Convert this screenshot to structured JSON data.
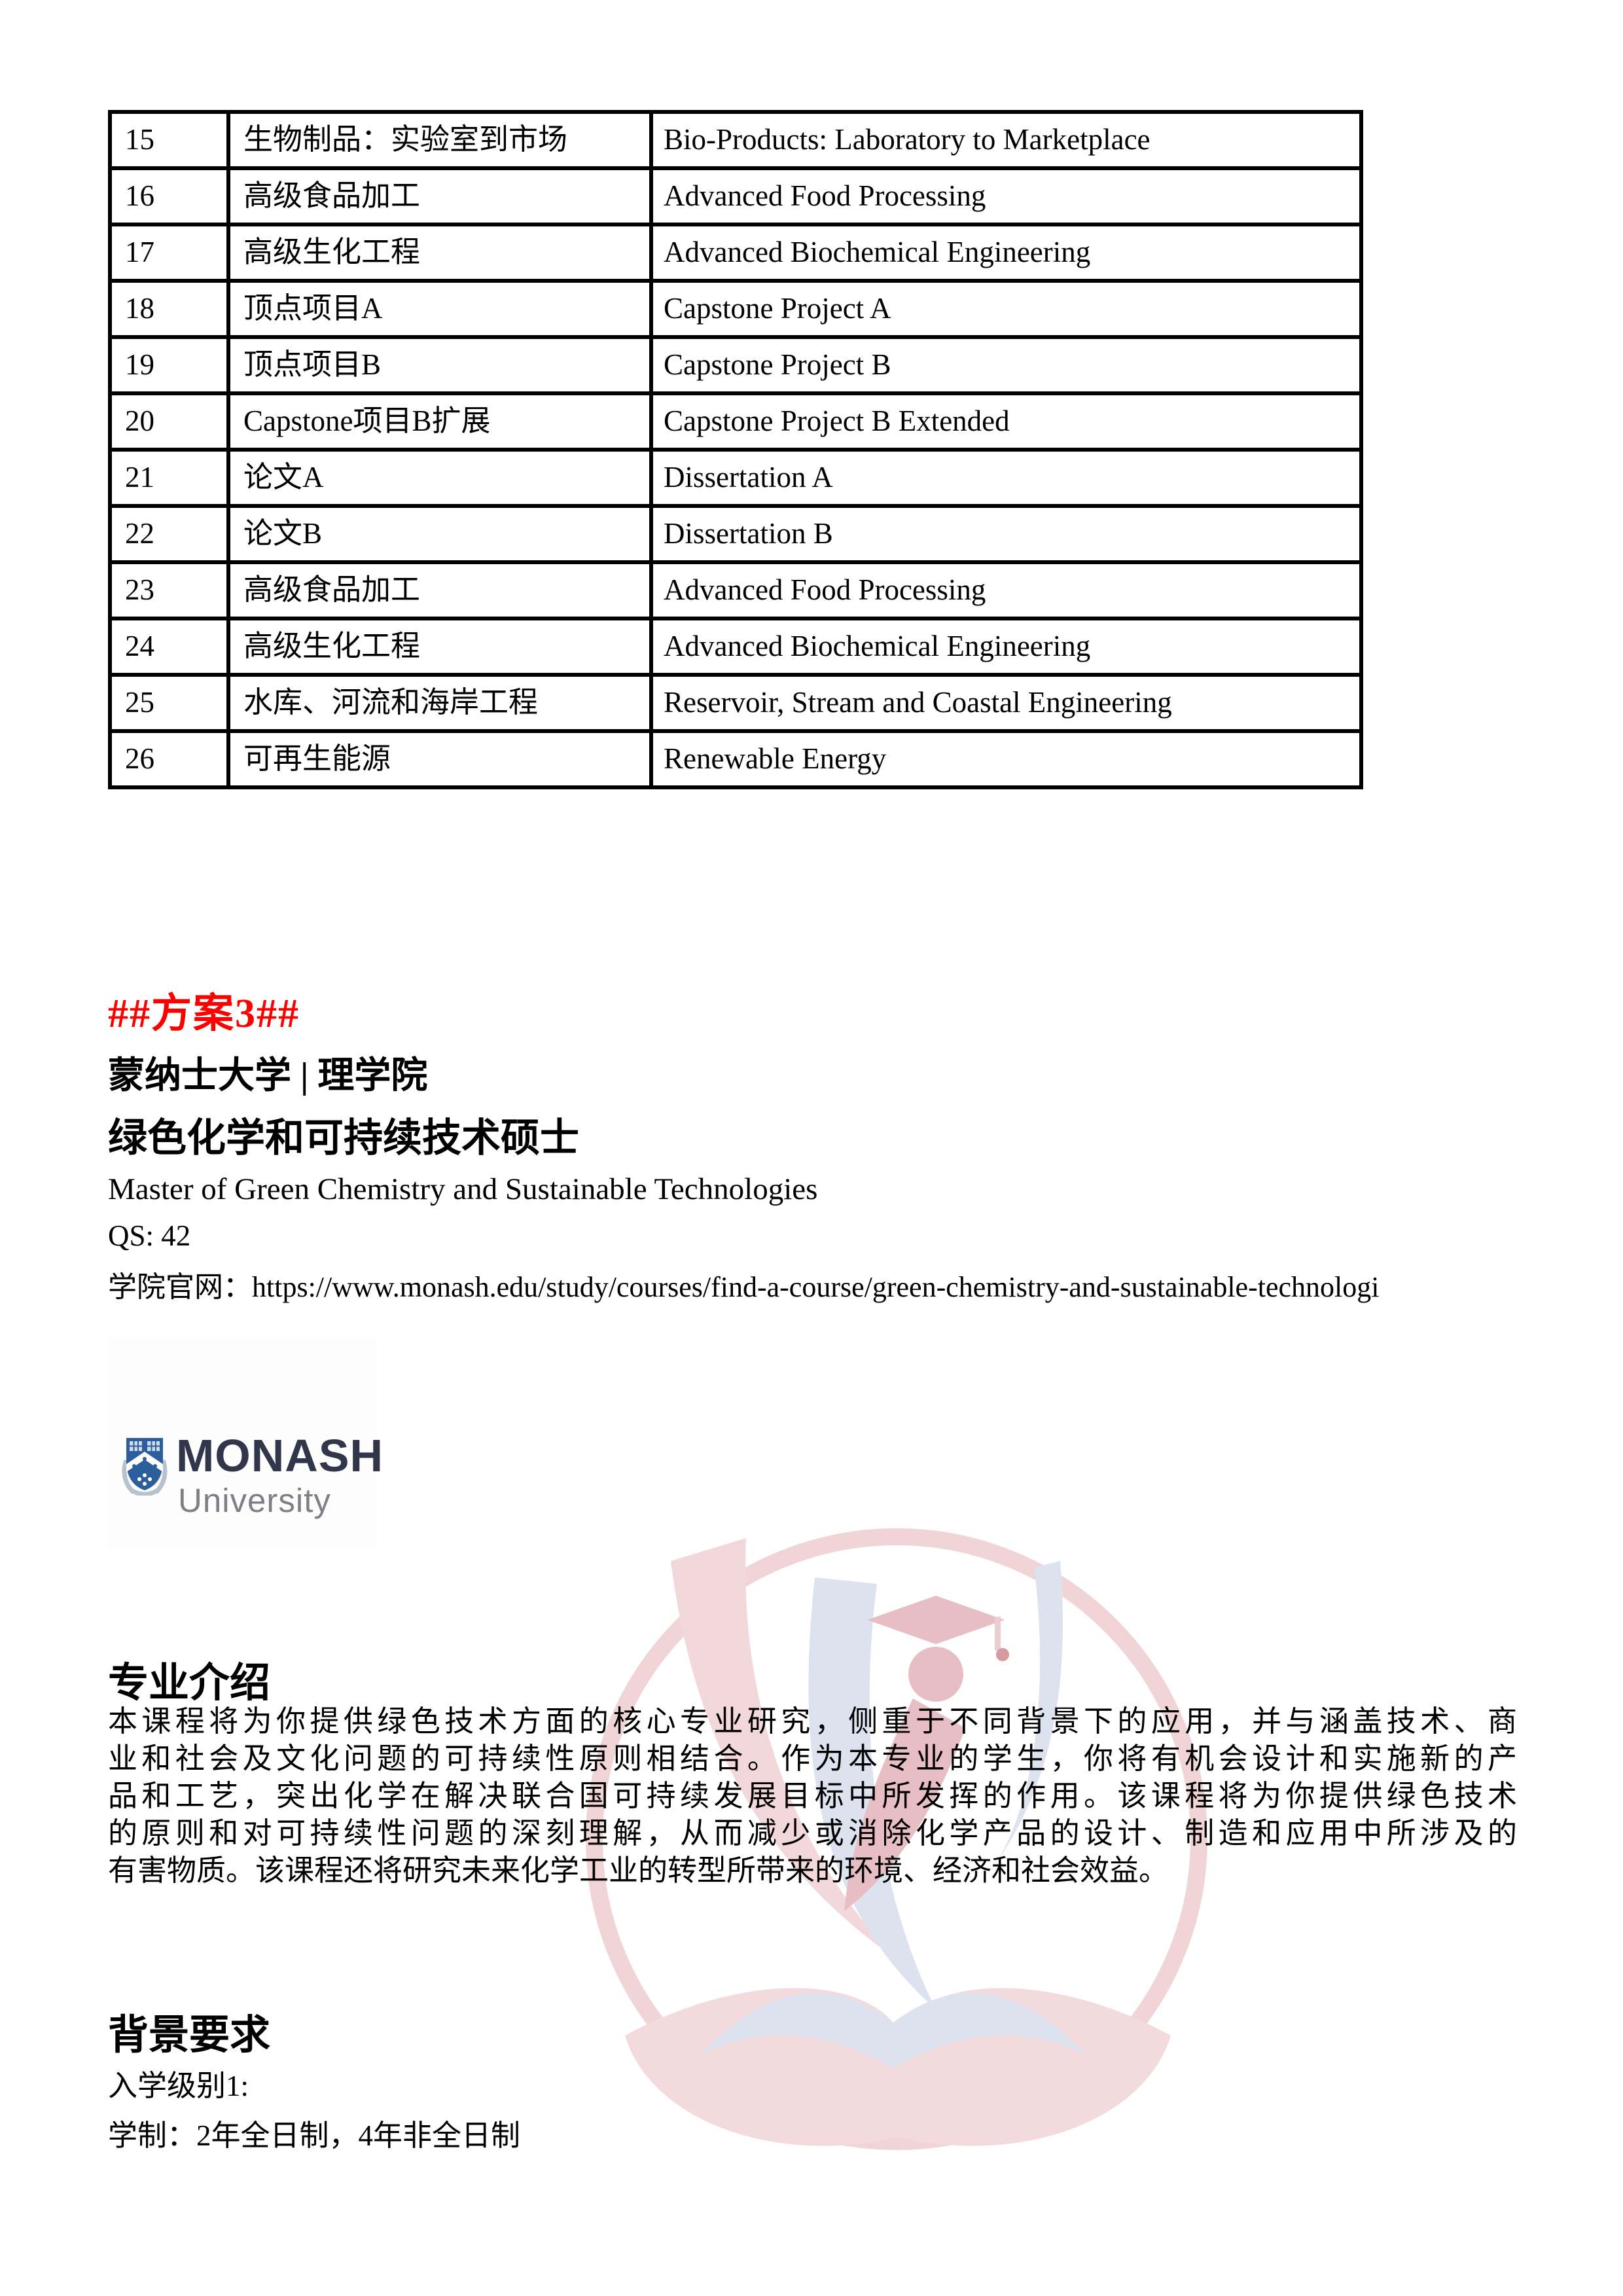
{
  "course_table": {
    "rows": [
      {
        "no": "15",
        "cn": "生物制品：实验室到市场",
        "en": "Bio-Products: Laboratory to Marketplace"
      },
      {
        "no": "16",
        "cn": "高级食品加工",
        "en": "Advanced Food Processing"
      },
      {
        "no": "17",
        "cn": "高级生化工程",
        "en": "Advanced Biochemical Engineering"
      },
      {
        "no": "18",
        "cn": "顶点项目A",
        "en": "Capstone Project A"
      },
      {
        "no": "19",
        "cn": "顶点项目B",
        "en": "Capstone Project B"
      },
      {
        "no": "20",
        "cn": "Capstone项目B扩展",
        "en": "Capstone Project B Extended"
      },
      {
        "no": "21",
        "cn": "论文A",
        "en": "Dissertation A"
      },
      {
        "no": "22",
        "cn": "论文B",
        "en": "Dissertation B"
      },
      {
        "no": "23",
        "cn": "高级食品加工",
        "en": "Advanced Food Processing"
      },
      {
        "no": "24",
        "cn": "高级生化工程",
        "en": "Advanced Biochemical Engineering"
      },
      {
        "no": "25",
        "cn": "水库、河流和海岸工程",
        "en": "Reservoir, Stream and Coastal Engineering"
      },
      {
        "no": "26",
        "cn": "可再生能源",
        "en": "Renewable Energy"
      }
    ]
  },
  "plan": {
    "heading": "##方案3##",
    "university_line": "蒙纳士大学 | 理学院",
    "program_cn": "绿色化学和可持续技术硕士",
    "program_en": "Master of Green Chemistry and Sustainable Technologies",
    "qs": "QS: 42",
    "website_label": "学院官网：",
    "website_url": "https://www.monash.edu/study/courses/find-a-course/green-chemistry-and-sustainable-technologi"
  },
  "logo": {
    "wordmark": "MONASH",
    "subtext": "University",
    "shield_color": "#2d5e9c",
    "wordmark_color": "#31364a",
    "subtext_color": "#7d8084"
  },
  "intro": {
    "heading": "专业介绍",
    "lines": [
      "本课程将为你提供绿色技术方面的核心专业研究，侧重于不同背景下的应用，并与涵盖技术、商",
      "业和社会及文化问题的可持续性原则相结合。作为本专业的学生，你将有机会设计和实施新的产",
      "品和工艺，突出化学在解决联合国可持续发展目标中所发挥的作用。该课程将为你提供绿色技术",
      "的原则和对可持续性问题的深刻理解，从而减少或消除化学产品的设计、制造和应用中所涉及的",
      "有害物质。该课程还将研究未来化学工业的转型所带来的环境、经济和社会效益。"
    ]
  },
  "background": {
    "heading": "背景要求",
    "entry_level": "入学级别1:",
    "duration": "学制：2年全日制，4年非全日制"
  },
  "colors": {
    "accent_red": "#ff0000",
    "watermark_pink": "#f2d8da",
    "watermark_gray": "#dde3ee"
  }
}
